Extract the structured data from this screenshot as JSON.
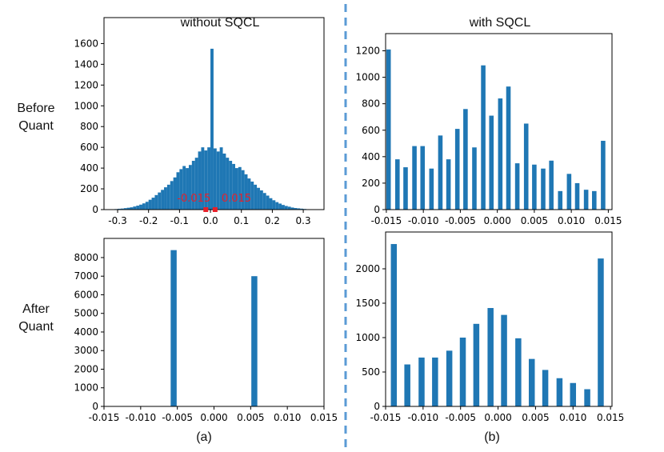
{
  "figure": {
    "columns": [
      "without SQCL",
      "with SQCL"
    ],
    "rows": [
      "Before Quant",
      "After Quant"
    ],
    "panels": [
      "(a)",
      "(b)"
    ]
  },
  "chart_data": [
    {
      "type": "histogram",
      "color": "#1f77b4",
      "bins": [
        -0.35,
        -0.34,
        -0.33,
        -0.32,
        -0.31,
        -0.3,
        -0.29,
        -0.28,
        -0.27,
        -0.26,
        -0.25,
        -0.24,
        -0.23,
        -0.22,
        -0.21,
        -0.2,
        -0.19,
        -0.18,
        -0.17,
        -0.16,
        -0.15,
        -0.14,
        -0.13,
        -0.12,
        -0.11,
        -0.1,
        -0.09,
        -0.08,
        -0.07,
        -0.06,
        -0.05,
        -0.04,
        -0.03,
        -0.02,
        -0.01,
        0,
        0.01,
        0.02,
        0.03,
        0.04,
        0.05,
        0.06,
        0.07,
        0.08,
        0.09,
        0.1,
        0.11,
        0.12,
        0.13,
        0.14,
        0.15,
        0.16,
        0.17,
        0.18,
        0.19,
        0.2,
        0.21,
        0.22,
        0.23,
        0.24,
        0.25,
        0.26,
        0.27,
        0.28,
        0.29,
        0.3,
        0.31,
        0.32,
        0.33,
        0.34,
        0.35
      ],
      "values": [
        0,
        0,
        2,
        3,
        5,
        8,
        10,
        14,
        18,
        22,
        30,
        38,
        48,
        60,
        75,
        95,
        115,
        140,
        165,
        190,
        215,
        240,
        275,
        310,
        360,
        390,
        420,
        400,
        430,
        470,
        500,
        560,
        600,
        570,
        600,
        1550,
        590,
        560,
        600,
        540,
        500,
        470,
        440,
        400,
        410,
        380,
        340,
        300,
        270,
        240,
        210,
        185,
        160,
        135,
        110,
        90,
        72,
        58,
        45,
        35,
        28,
        20,
        15,
        12,
        9,
        6,
        4,
        2,
        1,
        0
      ],
      "xlim": [
        -0.344,
        0.367
      ],
      "xticks": [
        -0.3,
        -0.2,
        -0.1,
        {
          "value": 0,
          "label": "0.0"
        },
        0.1,
        0.2,
        0.3
      ],
      "ylim": [
        0,
        1850
      ],
      "yticks": [
        0,
        200,
        400,
        600,
        800,
        1000,
        1200,
        1400,
        1600
      ],
      "annotations": [
        {
          "text": "-0.015",
          "x": -0.015
        },
        {
          "text": "0.015",
          "x": 0.015
        }
      ],
      "annotation_color": "#e8202a"
    },
    {
      "type": "bar",
      "color": "#1f77b4",
      "x": [
        -0.0147,
        -0.0135,
        -0.0124,
        -0.0112,
        -0.0101,
        -0.0089,
        -0.0077,
        -0.0066,
        -0.0054,
        -0.0043,
        -0.0031,
        -0.0019,
        -0.0008,
        0.0004,
        0.0015,
        0.0027,
        0.0039,
        0.005,
        0.0062,
        0.0073,
        0.0085,
        0.0097,
        0.0108,
        0.012,
        0.0131,
        0.0143
      ],
      "values": [
        1210,
        380,
        320,
        480,
        480,
        310,
        560,
        380,
        610,
        760,
        470,
        1090,
        710,
        840,
        930,
        350,
        650,
        340,
        310,
        370,
        140,
        270,
        200,
        150,
        140,
        520
      ],
      "xlim": [
        -0.0151,
        0.0155
      ],
      "xticks": [
        -0.015,
        {
          "value": -0.01,
          "label": "-0.010"
        },
        -0.005,
        {
          "value": 0,
          "label": "0.000"
        },
        0.005,
        {
          "value": 0.01,
          "label": "0.010"
        },
        0.015
      ],
      "ylim": [
        0,
        1330
      ],
      "yticks": [
        0,
        200,
        400,
        600,
        800,
        1000,
        1200
      ]
    },
    {
      "type": "bar",
      "color": "#1f77b4",
      "x": [
        -0.0055,
        0.0055
      ],
      "values": [
        8400,
        7000
      ],
      "xlim": [
        -0.015,
        0.015
      ],
      "xticks": [
        -0.015,
        {
          "value": -0.01,
          "label": "-0.010"
        },
        -0.005,
        {
          "value": 0,
          "label": "0.000"
        },
        0.005,
        {
          "value": 0.01,
          "label": "0.010"
        },
        0.015
      ],
      "ylim": [
        0,
        9030
      ],
      "yticks": [
        0,
        1000,
        2000,
        3000,
        4000,
        5000,
        6000,
        7000,
        8000
      ]
    },
    {
      "type": "bar",
      "color": "#1f77b4",
      "x": [
        -0.0139,
        -0.0121,
        -0.0102,
        -0.0084,
        -0.0065,
        -0.0047,
        -0.0029,
        -0.001,
        0.0008,
        0.0027,
        0.0045,
        0.0063,
        0.0082,
        0.01,
        0.0119,
        0.0137
      ],
      "values": [
        2360,
        610,
        710,
        710,
        810,
        1000,
        1200,
        1430,
        1330,
        990,
        690,
        530,
        410,
        340,
        250,
        2150
      ],
      "xlim": [
        -0.015,
        0.0152
      ],
      "xticks": [
        -0.015,
        {
          "value": -0.01,
          "label": "-0.010"
        },
        -0.005,
        {
          "value": 0,
          "label": "0.000"
        },
        0.005,
        {
          "value": 0.01,
          "label": "0.010"
        },
        0.015
      ],
      "ylim": [
        0,
        2535
      ],
      "yticks": [
        0,
        500,
        1000,
        1500,
        2000
      ]
    }
  ]
}
